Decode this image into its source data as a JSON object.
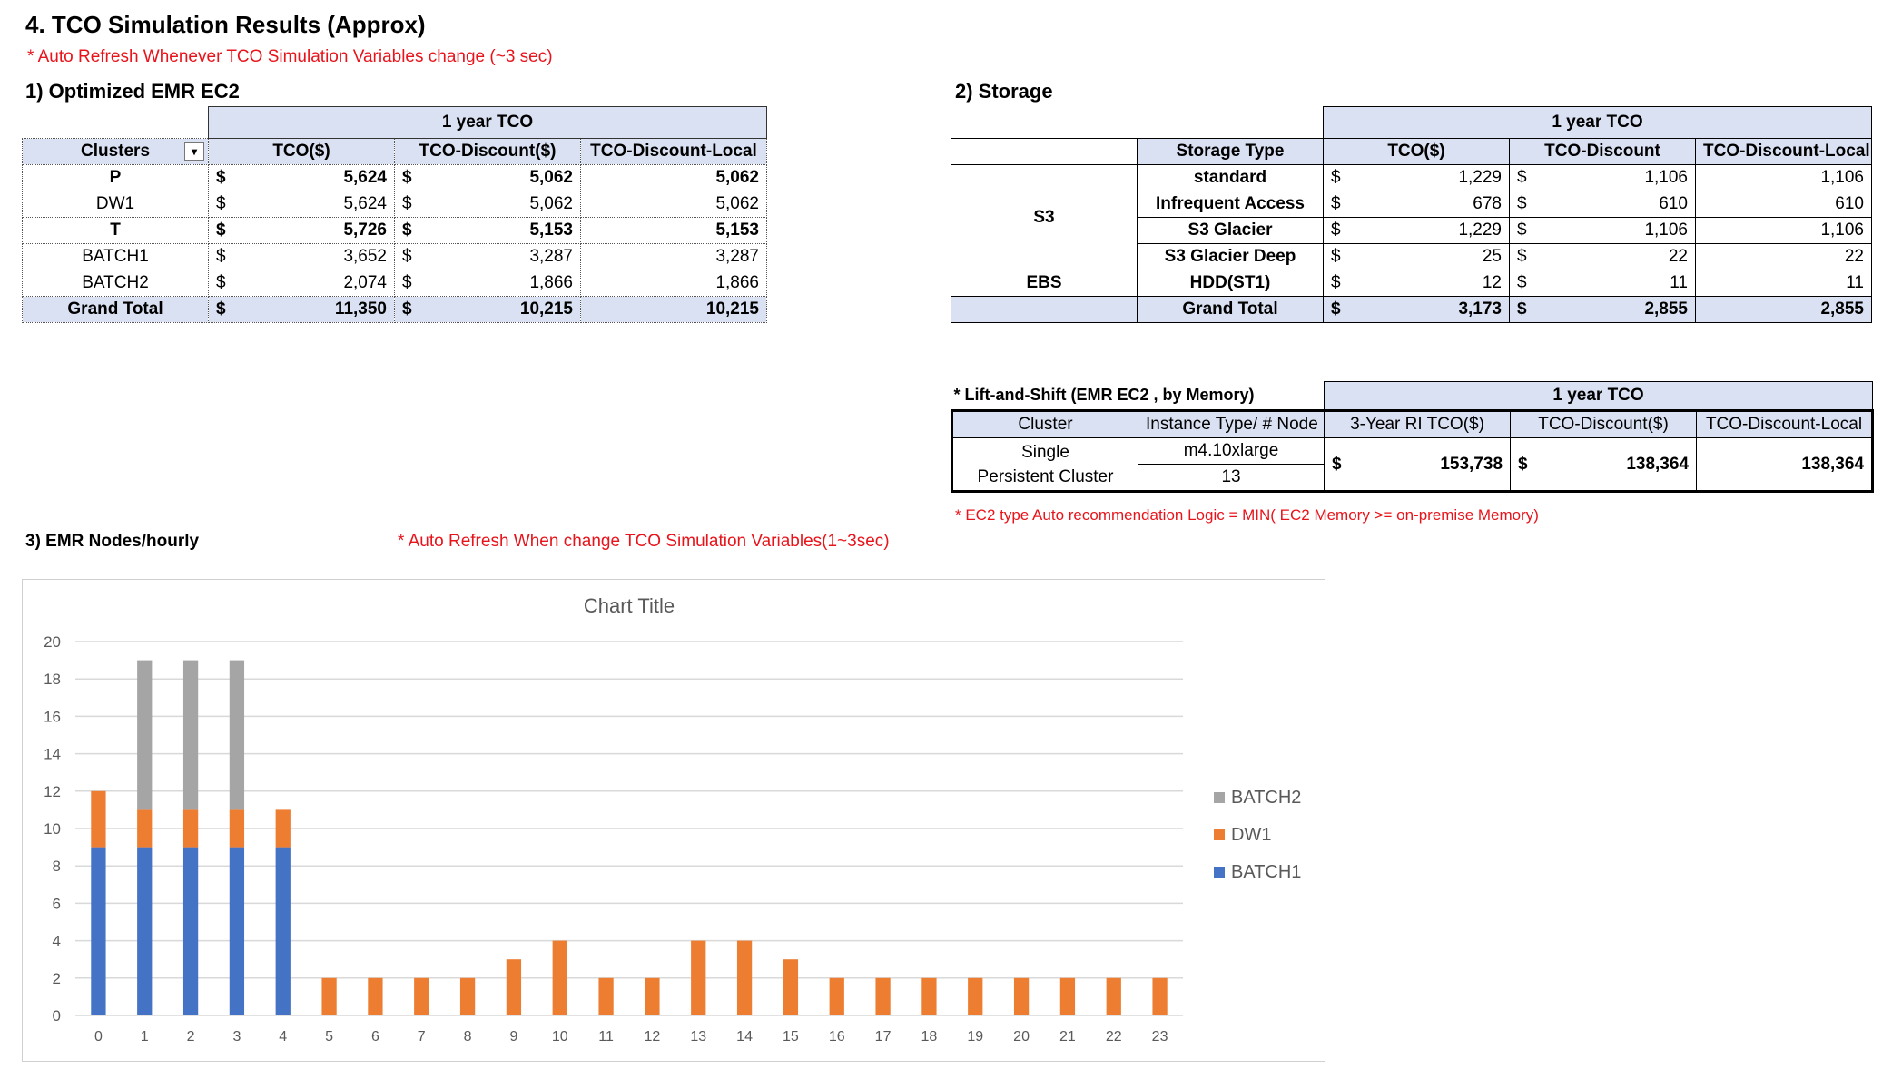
{
  "title": "4. TCO Simulation Results (Approx)",
  "note_top": "* Auto Refresh Whenever TCO Simulation Variables change (~3 sec)",
  "ec2": {
    "heading": "1) Optimized  EMR EC2",
    "group_header": "1 year TCO",
    "columns": [
      "Clusters",
      "TCO($)",
      "TCO-Discount($)",
      "TCO-Discount-Local"
    ],
    "filter_icon": "filter-dropdown-icon",
    "rows": [
      {
        "cluster": "P",
        "cur1": "$",
        "tco": "5,624",
        "cur2": "$",
        "disc": "5,062",
        "local": "5,062",
        "bold": true
      },
      {
        "cluster": "DW1",
        "cur1": "$",
        "tco": "5,624",
        "cur2": "$",
        "disc": "5,062",
        "local": "5,062",
        "bold": false
      },
      {
        "cluster": "T",
        "cur1": "$",
        "tco": "5,726",
        "cur2": "$",
        "disc": "5,153",
        "local": "5,153",
        "bold": true
      },
      {
        "cluster": "BATCH1",
        "cur1": "$",
        "tco": "3,652",
        "cur2": "$",
        "disc": "3,287",
        "local": "3,287",
        "bold": false
      },
      {
        "cluster": "BATCH2",
        "cur1": "$",
        "tco": "2,074",
        "cur2": "$",
        "disc": "1,866",
        "local": "1,866",
        "bold": false
      }
    ],
    "total": {
      "label": "Grand Total",
      "cur1": "$",
      "tco": "11,350",
      "cur2": "$",
      "disc": "10,215",
      "local": "10,215"
    }
  },
  "storage": {
    "heading": "2) Storage",
    "group_header": "1 year TCO",
    "columns": [
      "Storage Type",
      "TCO($)",
      "TCO-Discount",
      "TCO-Discount-Local"
    ],
    "group_s3": "S3",
    "group_ebs": "EBS",
    "rows": [
      {
        "type": "standard",
        "cur1": "$",
        "tco": "1,229",
        "cur2": "$",
        "disc": "1,106",
        "local": "1,106"
      },
      {
        "type": "Infrequent Access",
        "cur1": "$",
        "tco": "678",
        "cur2": "$",
        "disc": "610",
        "local": "610"
      },
      {
        "type": "S3 Glacier",
        "cur1": "$",
        "tco": "1,229",
        "cur2": "$",
        "disc": "1,106",
        "local": "1,106"
      },
      {
        "type": "S3 Glacier Deep",
        "cur1": "$",
        "tco": "25",
        "cur2": "$",
        "disc": "22",
        "local": "22"
      },
      {
        "type": "HDD(ST1)",
        "cur1": "$",
        "tco": "12",
        "cur2": "$",
        "disc": "11",
        "local": "11"
      }
    ],
    "total": {
      "label": "Grand Total",
      "cur1": "$",
      "tco": "3,173",
      "cur2": "$",
      "disc": "2,855",
      "local": "2,855"
    }
  },
  "lift": {
    "heading": "* Lift-and-Shift (EMR EC2 , by Memory)",
    "group_header": "1 year TCO",
    "columns": [
      "Cluster",
      "Instance Type/ # Node",
      "3-Year RI TCO($)",
      "TCO-Discount($)",
      "TCO-Discount-Local"
    ],
    "cluster_line1": "Single",
    "cluster_line2": "Persistent Cluster",
    "instance_type": "m4.10xlarge",
    "nodes": "13",
    "cur1": "$",
    "tco": "153,738",
    "cur2": "$",
    "disc": "138,364",
    "local": "138,364",
    "note": "* EC2 type Auto recommendation Logic  = MIN( EC2 Memory  >= on-premise Memory)"
  },
  "nodes_heading": "3) EMR Nodes/hourly",
  "nodes_note": "* Auto Refresh When change TCO Simulation Variables(1~3sec)",
  "colors": {
    "BATCH1": "#4472c4",
    "DW1": "#ed7d31",
    "BATCH2": "#a5a5a5",
    "header_fill": "#d9e1f2",
    "note_red": "#e8141b"
  },
  "chart_data": {
    "type": "bar",
    "stacked": true,
    "title": "Chart Title",
    "categories": [
      "0",
      "1",
      "2",
      "3",
      "4",
      "5",
      "6",
      "7",
      "8",
      "9",
      "10",
      "11",
      "12",
      "13",
      "14",
      "15",
      "16",
      "17",
      "18",
      "19",
      "20",
      "21",
      "22",
      "23"
    ],
    "series": [
      {
        "name": "BATCH1",
        "values": [
          9,
          9,
          9,
          9,
          9,
          0,
          0,
          0,
          0,
          0,
          0,
          0,
          0,
          0,
          0,
          0,
          0,
          0,
          0,
          0,
          0,
          0,
          0,
          0
        ]
      },
      {
        "name": "DW1",
        "values": [
          3,
          2,
          2,
          2,
          2,
          2,
          2,
          2,
          2,
          3,
          4,
          2,
          2,
          4,
          4,
          3,
          2,
          2,
          2,
          2,
          2,
          2,
          2,
          2
        ]
      },
      {
        "name": "BATCH2",
        "values": [
          0,
          8,
          8,
          8,
          0,
          0,
          0,
          0,
          0,
          0,
          0,
          0,
          0,
          0,
          0,
          0,
          0,
          0,
          0,
          0,
          0,
          0,
          0,
          0
        ]
      }
    ],
    "legend_order": [
      "BATCH2",
      "DW1",
      "BATCH1"
    ],
    "ylim": [
      0,
      20
    ],
    "yticks": [
      "0",
      "2",
      "4",
      "6",
      "8",
      "10",
      "12",
      "14",
      "16",
      "18",
      "20"
    ],
    "grid": true,
    "legend_position": "right"
  }
}
